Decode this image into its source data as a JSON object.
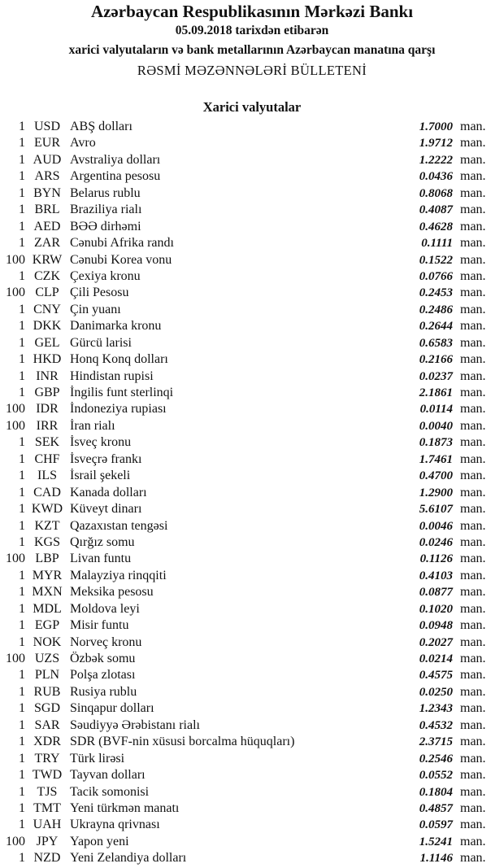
{
  "header": {
    "title": "Azərbaycan Respublikasının Mərkəzi Bankı",
    "date_line": "05.09.2018  tarixdən etibarən",
    "subtitle": "xarici valyutaların və bank metallarının Azərbaycan manatına qarşı",
    "bulletin": "RƏSMİ MƏZƏNNƏLƏRİ BÜLLETENİ"
  },
  "section_title": "Xarici valyutalar",
  "unit_label": "man.",
  "rates": [
    {
      "qty": "1",
      "code": "USD",
      "name": "ABŞ dolları",
      "value": "1.7000"
    },
    {
      "qty": "1",
      "code": "EUR",
      "name": "Avro",
      "value": "1.9712"
    },
    {
      "qty": "1",
      "code": "AUD",
      "name": "Avstraliya dolları",
      "value": "1.2222"
    },
    {
      "qty": "1",
      "code": "ARS",
      "name": "Argentina pesosu",
      "value": "0.0436"
    },
    {
      "qty": "1",
      "code": "BYN",
      "name": "Belarus rublu",
      "value": "0.8068"
    },
    {
      "qty": "1",
      "code": "BRL",
      "name": "Braziliya rialı",
      "value": "0.4087"
    },
    {
      "qty": "1",
      "code": "AED",
      "name": "BƏƏ dirhəmi",
      "value": "0.4628"
    },
    {
      "qty": "1",
      "code": "ZAR",
      "name": "Cənubi Afrika randı",
      "value": "0.1111"
    },
    {
      "qty": "100",
      "code": "KRW",
      "name": "Cənubi Korea vonu",
      "value": "0.1522"
    },
    {
      "qty": "1",
      "code": "CZK",
      "name": "Çexiya kronu",
      "value": "0.0766"
    },
    {
      "qty": "100",
      "code": "CLP",
      "name": "Çili Pesosu",
      "value": "0.2453"
    },
    {
      "qty": "1",
      "code": "CNY",
      "name": "Çin yuanı",
      "value": "0.2486"
    },
    {
      "qty": "1",
      "code": "DKK",
      "name": "Danimarka kronu",
      "value": "0.2644"
    },
    {
      "qty": "1",
      "code": "GEL",
      "name": "Gürcü larisi",
      "value": "0.6583"
    },
    {
      "qty": "1",
      "code": "HKD",
      "name": "Honq Konq dolları",
      "value": "0.2166"
    },
    {
      "qty": "1",
      "code": "INR",
      "name": "Hindistan rupisi",
      "value": "0.0237"
    },
    {
      "qty": "1",
      "code": "GBP",
      "name": "İngilis funt sterlinqi",
      "value": "2.1861"
    },
    {
      "qty": "100",
      "code": "IDR",
      "name": "İndoneziya rupiası",
      "value": "0.0114"
    },
    {
      "qty": "100",
      "code": "IRR",
      "name": "İran rialı",
      "value": "0.0040"
    },
    {
      "qty": "1",
      "code": "SEK",
      "name": "İsveç kronu",
      "value": "0.1873"
    },
    {
      "qty": "1",
      "code": "CHF",
      "name": "İsveçrə frankı",
      "value": "1.7461"
    },
    {
      "qty": "1",
      "code": "ILS",
      "name": "İsrail şekeli",
      "value": "0.4700"
    },
    {
      "qty": "1",
      "code": "CAD",
      "name": "Kanada dolları",
      "value": "1.2900"
    },
    {
      "qty": "1",
      "code": "KWD",
      "name": "Küveyt dinarı",
      "value": "5.6107"
    },
    {
      "qty": "1",
      "code": "KZT",
      "name": "Qazaxıstan tengəsi",
      "value": "0.0046"
    },
    {
      "qty": "1",
      "code": "KGS",
      "name": "Qırğız somu",
      "value": "0.0246"
    },
    {
      "qty": "100",
      "code": "LBP",
      "name": "Livan funtu",
      "value": "0.1126"
    },
    {
      "qty": "1",
      "code": "MYR",
      "name": "Malayziya rinqqiti",
      "value": "0.4103"
    },
    {
      "qty": "1",
      "code": "MXN",
      "name": "Meksika pesosu",
      "value": "0.0877"
    },
    {
      "qty": "1",
      "code": "MDL",
      "name": "Moldova leyi",
      "value": "0.1020"
    },
    {
      "qty": "1",
      "code": "EGP",
      "name": "Misir funtu",
      "value": "0.0948"
    },
    {
      "qty": "1",
      "code": "NOK",
      "name": "Norveç kronu",
      "value": "0.2027"
    },
    {
      "qty": "100",
      "code": "UZS",
      "name": "Özbək somu",
      "value": "0.0214"
    },
    {
      "qty": "1",
      "code": "PLN",
      "name": "Polşa zlotası",
      "value": "0.4575"
    },
    {
      "qty": "1",
      "code": "RUB",
      "name": "Rusiya rublu",
      "value": "0.0250"
    },
    {
      "qty": "1",
      "code": "SGD",
      "name": "Sinqapur dolları",
      "value": "1.2343"
    },
    {
      "qty": "1",
      "code": "SAR",
      "name": "Səudiyyə Ərəbistanı rialı",
      "value": "0.4532"
    },
    {
      "qty": "1",
      "code": "XDR",
      "name": "SDR (BVF-nin xüsusi borcalma hüquqları)",
      "value": "2.3715"
    },
    {
      "qty": "1",
      "code": "TRY",
      "name": "Türk lirəsi",
      "value": "0.2546"
    },
    {
      "qty": "1",
      "code": "TWD",
      "name": "Tayvan dolları",
      "value": "0.0552"
    },
    {
      "qty": "1",
      "code": "TJS",
      "name": "Tacik somonisi",
      "value": "0.1804"
    },
    {
      "qty": "1",
      "code": "TMT",
      "name": "Yeni türkmən manatı",
      "value": "0.4857"
    },
    {
      "qty": "1",
      "code": "UAH",
      "name": "Ukrayna qrivnası",
      "value": "0.0597"
    },
    {
      "qty": "100",
      "code": "JPY",
      "name": "Yapon yeni",
      "value": "1.5241"
    },
    {
      "qty": "1",
      "code": "NZD",
      "name": "Yeni Zelandiya dolları",
      "value": "1.1146"
    }
  ]
}
